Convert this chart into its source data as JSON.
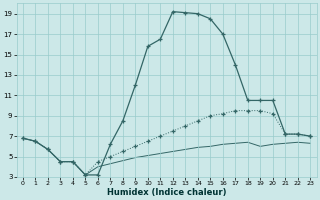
{
  "xlabel": "Humidex (Indice chaleur)",
  "bg_color": "#cce8e8",
  "grid_color": "#99cccc",
  "line_color": "#336666",
  "xlim": [
    -0.5,
    23.5
  ],
  "ylim": [
    3,
    20
  ],
  "yticks": [
    3,
    5,
    7,
    9,
    11,
    13,
    15,
    17,
    19
  ],
  "xticks": [
    0,
    1,
    2,
    3,
    4,
    5,
    6,
    7,
    8,
    9,
    10,
    11,
    12,
    13,
    14,
    15,
    16,
    17,
    18,
    19,
    20,
    21,
    22,
    23
  ],
  "line1_x": [
    0,
    1,
    2,
    3,
    4,
    5,
    6,
    7,
    8,
    9,
    10,
    11,
    12,
    13,
    14,
    15,
    16,
    17,
    18,
    19,
    20,
    21,
    22,
    23
  ],
  "line1_y": [
    6.8,
    6.5,
    5.7,
    4.5,
    4.5,
    3.2,
    3.2,
    6.2,
    8.5,
    12.0,
    15.8,
    16.5,
    19.2,
    19.1,
    19.0,
    18.5,
    17.0,
    14.0,
    10.5,
    10.5,
    10.5,
    7.2,
    7.2,
    7.0
  ],
  "line2_x": [
    0,
    1,
    2,
    3,
    4,
    5,
    6,
    7,
    8,
    9,
    10,
    11,
    12,
    13,
    14,
    15,
    16,
    17,
    18,
    19,
    20,
    21,
    22,
    23
  ],
  "line2_y": [
    6.8,
    6.5,
    5.7,
    4.5,
    4.5,
    3.2,
    4.5,
    5.0,
    5.5,
    6.0,
    6.5,
    7.0,
    7.5,
    8.0,
    8.5,
    9.0,
    9.2,
    9.5,
    9.5,
    9.5,
    9.2,
    7.2,
    7.2,
    7.0
  ],
  "line3_x": [
    0,
    1,
    2,
    3,
    4,
    5,
    6,
    7,
    8,
    9,
    10,
    11,
    12,
    13,
    14,
    15,
    16,
    17,
    18,
    19,
    20,
    21,
    22,
    23
  ],
  "line3_y": [
    6.8,
    6.5,
    5.7,
    4.5,
    4.5,
    3.2,
    4.0,
    4.3,
    4.6,
    4.9,
    5.1,
    5.3,
    5.5,
    5.7,
    5.9,
    6.0,
    6.2,
    6.3,
    6.4,
    6.0,
    6.2,
    6.3,
    6.4,
    6.3
  ]
}
